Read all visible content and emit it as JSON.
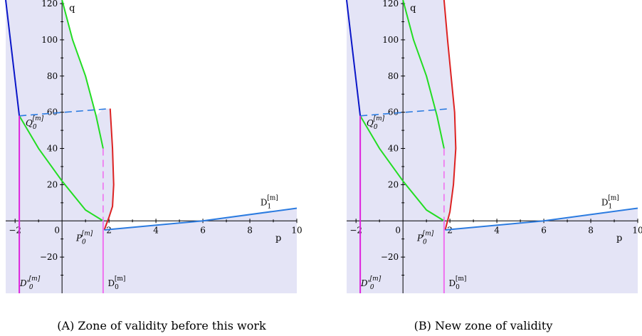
{
  "chart_data": [
    {
      "type": "line",
      "caption": "(A) Zone of validity before this work",
      "xlabel": "p",
      "ylabel": "q",
      "xlim": [
        -2.4,
        10
      ],
      "ylim": [
        -40,
        122
      ],
      "x_ticks": [
        -2,
        0,
        2,
        4,
        6,
        8,
        10
      ],
      "y_ticks": [
        -20,
        20,
        40,
        60,
        80,
        100,
        120
      ],
      "shaded_region": "validity zone",
      "shade_color": "#e4e4f6",
      "series": [
        {
          "color": "#0a16c8",
          "x": [
            -2.4,
            -1.82
          ],
          "y": [
            122,
            58
          ]
        },
        {
          "color": "#22dd22",
          "x": [
            0,
            0.45,
            1.0,
            1.45,
            1.75
          ],
          "y": [
            122,
            100,
            80,
            58,
            40
          ]
        },
        {
          "color": "#22dd22",
          "x": [
            -1.82,
            -1.0,
            0.0,
            1.0,
            1.75
          ],
          "y": [
            58,
            40,
            22,
            6,
            0
          ]
        },
        {
          "color": "#2b7be0",
          "dashed": true,
          "x": [
            -1.82,
            2.05
          ],
          "y": [
            58,
            62
          ]
        },
        {
          "color": "#dd2222",
          "x": [
            2.05,
            2.15,
            2.2,
            2.15,
            2.0,
            1.8
          ],
          "y": [
            62,
            40,
            20,
            8,
            2,
            -5
          ]
        },
        {
          "color": "#2b7be0",
          "x": [
            1.8,
            6.0,
            10.0
          ],
          "y": [
            -5,
            0,
            7
          ]
        },
        {
          "color": "#dd22dd",
          "x": [
            -1.82,
            -1.82
          ],
          "y": [
            58,
            -40
          ]
        },
        {
          "color": "#f070f0",
          "dashed": true,
          "x": [
            1.75,
            1.75
          ],
          "y": [
            40,
            0
          ]
        },
        {
          "color": "#f070f0",
          "x": [
            1.75,
            1.75
          ],
          "y": [
            0,
            -40
          ]
        }
      ],
      "labels": {
        "Q0": {
          "base": "Q",
          "sub": "0",
          "sup": "[m]"
        },
        "P0": {
          "base": "P",
          "sub": "0",
          "sup": "[m]"
        },
        "D1": {
          "base": "D",
          "sub": "1",
          "sup": "[m]"
        },
        "D0": {
          "base": "D",
          "sub": "0",
          "sup": "[m]"
        },
        "D0prime": {
          "base": "D'",
          "sub": "0",
          "sup": "[m]"
        }
      }
    },
    {
      "type": "line",
      "caption": "(B) New zone of validity",
      "xlabel": "p",
      "ylabel": "q",
      "xlim": [
        -2.4,
        10
      ],
      "ylim": [
        -40,
        122
      ],
      "x_ticks": [
        -2,
        0,
        2,
        4,
        6,
        8,
        10
      ],
      "y_ticks": [
        -20,
        20,
        40,
        60,
        80,
        100,
        120
      ],
      "shaded_region": "validity zone",
      "shade_color": "#e4e4f6",
      "series": [
        {
          "color": "#0a16c8",
          "x": [
            -2.4,
            -1.82
          ],
          "y": [
            122,
            58
          ]
        },
        {
          "color": "#22dd22",
          "x": [
            0,
            0.45,
            1.0,
            1.45,
            1.75
          ],
          "y": [
            122,
            100,
            80,
            58,
            40
          ]
        },
        {
          "color": "#22dd22",
          "x": [
            -1.82,
            -1.0,
            0.0,
            1.0,
            1.75
          ],
          "y": [
            58,
            40,
            22,
            6,
            0
          ]
        },
        {
          "color": "#2b7be0",
          "dashed": true,
          "x": [
            -1.82,
            2.05
          ],
          "y": [
            58,
            62
          ]
        },
        {
          "color": "#dd2222",
          "x": [
            1.75,
            1.9,
            2.05,
            2.2,
            2.25,
            2.15,
            2.0,
            1.8
          ],
          "y": [
            122,
            100,
            80,
            60,
            40,
            20,
            5,
            -5
          ]
        },
        {
          "color": "#2b7be0",
          "x": [
            1.8,
            6.0,
            10.0
          ],
          "y": [
            -5,
            0,
            7
          ]
        },
        {
          "color": "#dd22dd",
          "x": [
            -1.82,
            -1.82
          ],
          "y": [
            58,
            -40
          ]
        },
        {
          "color": "#f070f0",
          "dashed": true,
          "x": [
            1.75,
            1.75
          ],
          "y": [
            40,
            0
          ]
        },
        {
          "color": "#f070f0",
          "x": [
            1.75,
            1.75
          ],
          "y": [
            0,
            -40
          ]
        }
      ],
      "labels": {
        "Q0": {
          "base": "Q",
          "sub": "0",
          "sup": "[m]"
        },
        "P0": {
          "base": "P",
          "sub": "0",
          "sup": "[m]"
        },
        "D1": {
          "base": "D",
          "sub": "1",
          "sup": "[m]"
        },
        "D0": {
          "base": "D",
          "sub": "0",
          "sup": "[m]"
        },
        "D0prime": {
          "base": "D'",
          "sub": "0",
          "sup": "[m]"
        }
      }
    }
  ]
}
